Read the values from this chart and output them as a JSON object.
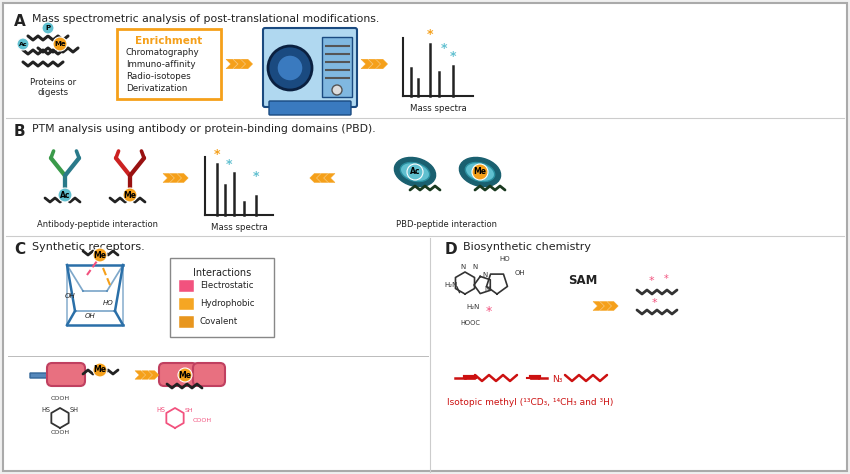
{
  "bg_color": "#f0f0f0",
  "white": "#ffffff",
  "title_A": "Mass spectrometric analysis of post-translational modifications.",
  "title_B": "PTM analysis using antibody or protein-binding domains (PBD).",
  "title_C": "Synthetic receptors.",
  "title_D": "Biosynthetic chemistry",
  "enrichment_title": "Enrichment",
  "enrichment_items": [
    "Chromatography",
    "Immuno-affinity",
    "Radio-isotopes",
    "Derivatization"
  ],
  "interactions_title": "Interactions",
  "interaction_items": [
    "Electrostatic",
    "Hydrophobic",
    "Covalent"
  ],
  "interaction_colors": [
    "#f2527e",
    "#f5a623",
    "#e8961e"
  ],
  "orange_arrow": "#f5a01a",
  "teal_dark": "#1a6070",
  "teal_mid": "#2a8fa0",
  "teal_light": "#60c0d0",
  "ms_blue_dark": "#1a4a80",
  "ms_blue_mid": "#3a7abf",
  "ms_blue_light": "#80b8e0",
  "ms_blue_pale": "#b0d8f0",
  "green_ab": "#3a9a4a",
  "red_ab": "#cc2222",
  "orange_badge": "#f5a01a",
  "teal_badge": "#60c0d0",
  "pink_color": "#f2527e",
  "dark": "#222222",
  "gray": "#555555",
  "mass_spectra_label": "Mass spectra",
  "proteins_label": "Proteins or\ndigests",
  "antibody_label": "Antibody-peptide interaction",
  "pbd_label": "PBD-peptide interaction",
  "sam_label": "SAM",
  "isotopic_label": "Isotopic methyl (¹³CD₃, ¹⁴CH₃ and ³H)"
}
